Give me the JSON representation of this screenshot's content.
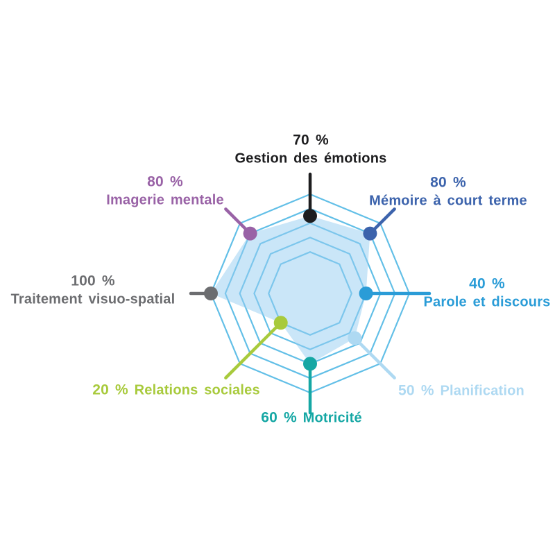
{
  "chart_data": {
    "type": "radar",
    "title": "",
    "axes": [
      {
        "name": "Gestion des émotions",
        "value": 70,
        "pct_text": "70 %",
        "color": "#1d1d1f"
      },
      {
        "name": "Mémoire à court terme",
        "value": 80,
        "pct_text": "80 %",
        "color": "#3c63ac"
      },
      {
        "name": "Parole et discours",
        "value": 40,
        "pct_text": "40 %",
        "color": "#2a9cd7"
      },
      {
        "name": "Planification",
        "value": 50,
        "pct_text": "50 %",
        "color": "#aed9f2"
      },
      {
        "name": "Motricité",
        "value": 60,
        "pct_text": "60 %",
        "color": "#15a7a4"
      },
      {
        "name": "Relations sociales",
        "value": 20,
        "pct_text": "20 %",
        "color": "#a8ca3c"
      },
      {
        "name": "Traitement visuo-spatial",
        "value": 100,
        "pct_text": "100 %",
        "color": "#6c6d70"
      },
      {
        "name": "Imagerie mentale",
        "value": 80,
        "pct_text": "80 %",
        "color": "#9962a6"
      }
    ],
    "scale": {
      "min": 0,
      "max": 100,
      "unit": "%",
      "rings": [
        20,
        40,
        60,
        80,
        100
      ]
    },
    "style": {
      "web_color": "#62bfe7",
      "fill_color": "rgba(150, 205, 242, 0.5)"
    },
    "layout": {
      "grid": "octagonal-web",
      "legend": "none",
      "labels": "around-perimeter"
    }
  }
}
